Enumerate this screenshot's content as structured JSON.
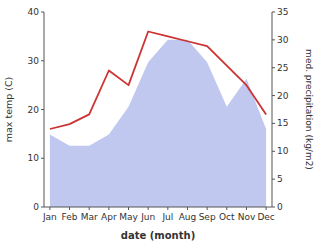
{
  "chart_data": {
    "type": "line",
    "categories": [
      "Jan",
      "Feb",
      "Mar",
      "Apr",
      "May",
      "Jun",
      "Jul",
      "Aug",
      "Sep",
      "Oct",
      "Nov",
      "Dec"
    ],
    "series": [
      {
        "type": "area",
        "color": "#c0c8f0",
        "axis": "y2",
        "values": [
          13,
          11,
          11,
          13,
          18,
          26,
          30,
          30,
          26,
          18,
          23,
          14
        ]
      },
      {
        "type": "line",
        "color": "#cc3333",
        "values": [
          16,
          17,
          19,
          28,
          25,
          36,
          35,
          34,
          33,
          29,
          25,
          19
        ]
      }
    ],
    "xlabel": "date (month)",
    "ylabel": "max temp (C)",
    "y2label": "med. precipitation (kg/m2)",
    "ylim": [
      0,
      40
    ],
    "yticks": [
      0,
      10,
      20,
      30,
      40
    ],
    "y2lim": [
      0,
      35
    ],
    "y2ticks": [
      0,
      5,
      10,
      15,
      20,
      25,
      30,
      35
    ],
    "grid": false
  }
}
